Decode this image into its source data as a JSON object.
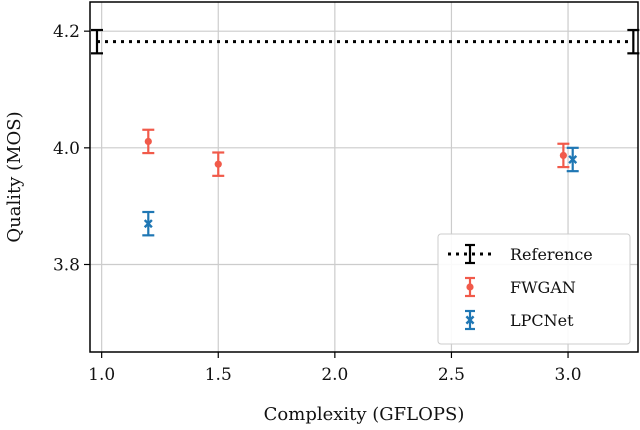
{
  "chart_data": {
    "type": "scatter",
    "xlabel": "Complexity (GFLOPS)",
    "ylabel": "Quality (MOS)",
    "xlim": [
      0.95,
      3.3
    ],
    "ylim": [
      3.65,
      4.25
    ],
    "xticks": [
      1.0,
      1.5,
      2.0,
      2.5,
      3.0
    ],
    "xtick_labels": [
      "1.0",
      "1.5",
      "2.0",
      "2.5",
      "3.0"
    ],
    "yticks": [
      3.8,
      4.0,
      4.2
    ],
    "ytick_labels": [
      "3.8",
      "4.0",
      "4.2"
    ],
    "grid": true,
    "legend_position": "lower-right",
    "series": [
      {
        "name": "Reference",
        "style": "dotted-line-with-errorbars",
        "color": "#000000",
        "points": [
          {
            "x": 0.98,
            "y": 4.182,
            "err": 0.02
          },
          {
            "x": 3.28,
            "y": 4.182,
            "err": 0.02
          }
        ]
      },
      {
        "name": "FWGAN",
        "style": "dot-errorbar",
        "color": "#f15a4a",
        "points": [
          {
            "x": 1.2,
            "y": 4.011,
            "err": 0.02
          },
          {
            "x": 1.5,
            "y": 3.972,
            "err": 0.02
          },
          {
            "x": 2.98,
            "y": 3.987,
            "err": 0.02
          }
        ]
      },
      {
        "name": "LPCNet",
        "style": "x-errorbar",
        "color": "#1f77b4",
        "points": [
          {
            "x": 1.2,
            "y": 3.87,
            "err": 0.02
          },
          {
            "x": 3.02,
            "y": 3.98,
            "err": 0.02
          }
        ]
      }
    ]
  }
}
